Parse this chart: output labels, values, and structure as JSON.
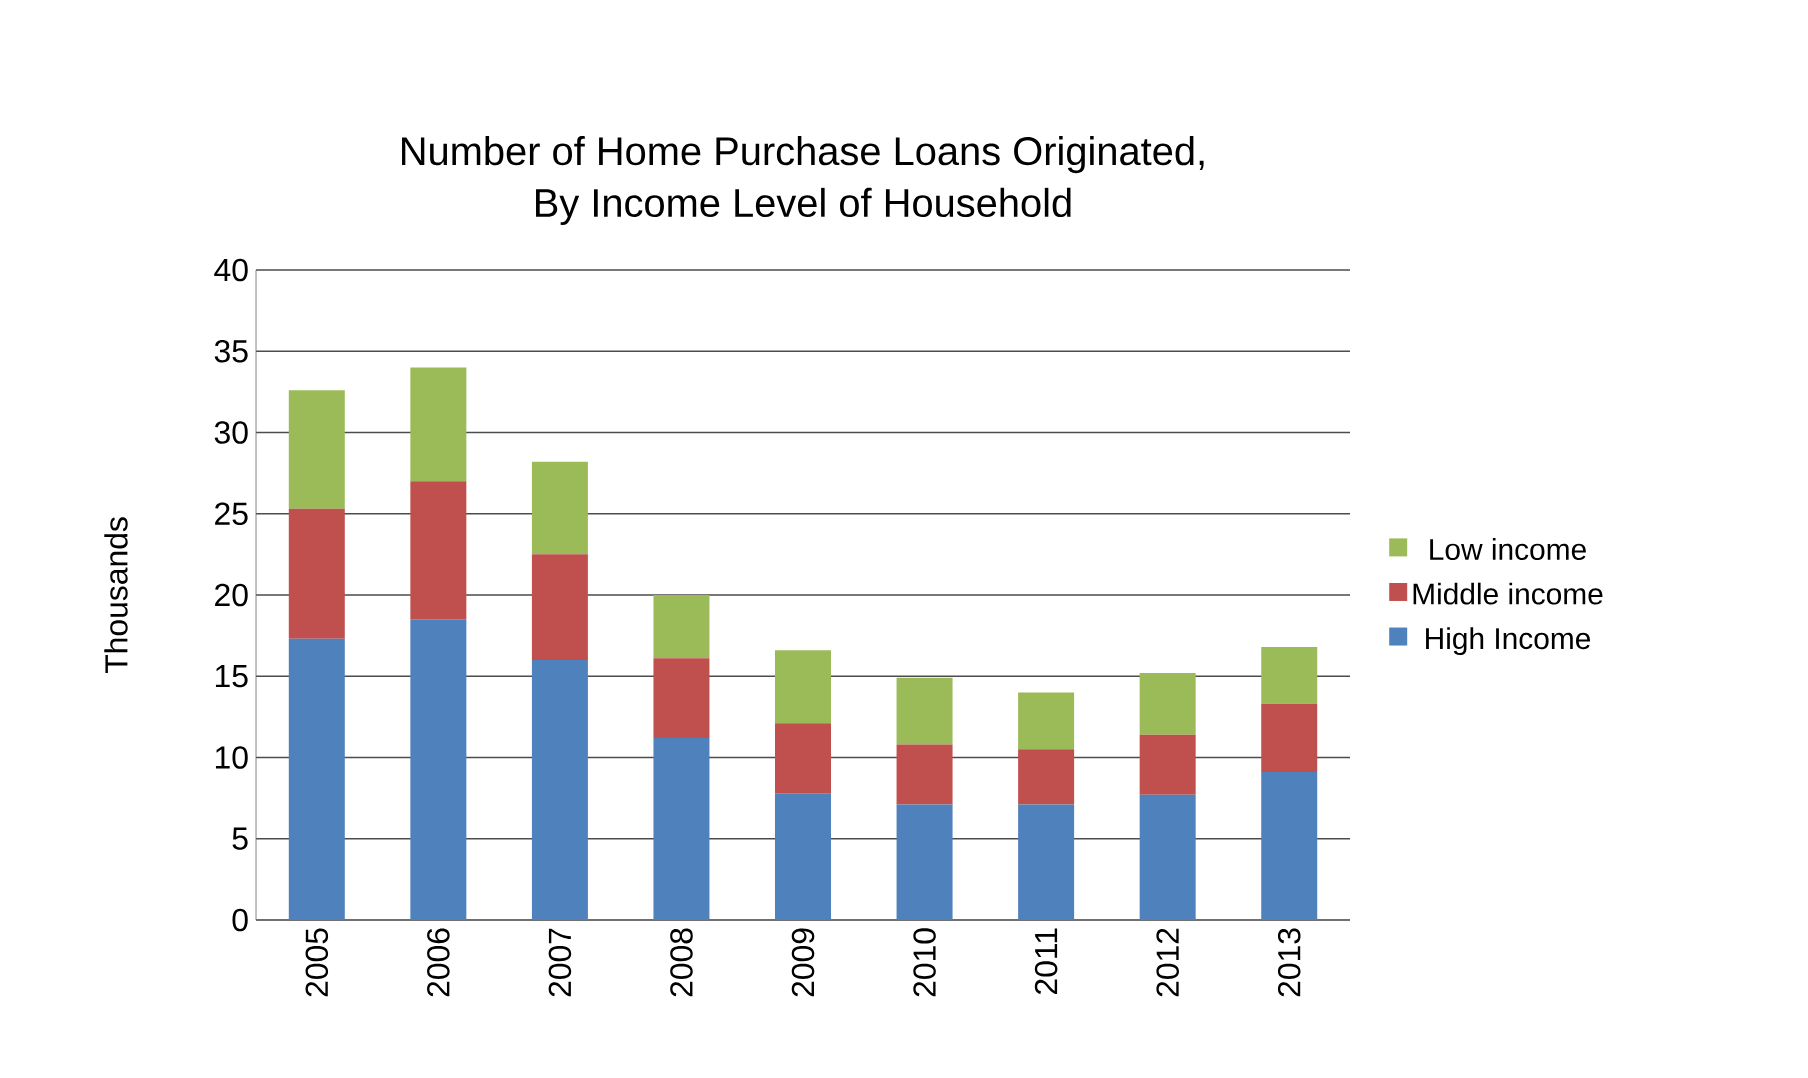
{
  "chart_data": {
    "type": "bar",
    "stacked": true,
    "title": "Number of Home Purchase Loans Originated,\nBy Income Level of Household",
    "ylabel": "Thousands",
    "categories": [
      "2005",
      "2006",
      "2007",
      "2008",
      "2009",
      "2010",
      "2011",
      "2012",
      "2013"
    ],
    "series": [
      {
        "name": "High Income",
        "color": "#4f81bd",
        "values": [
          17.3,
          18.5,
          16.0,
          11.2,
          7.8,
          7.1,
          7.1,
          7.7,
          9.1
        ]
      },
      {
        "name": "Middle income",
        "color": "#c0504d",
        "values": [
          8.0,
          8.5,
          6.5,
          4.9,
          4.3,
          3.7,
          3.4,
          3.7,
          4.2
        ]
      },
      {
        "name": "Low income",
        "color": "#9bbb59",
        "values": [
          7.3,
          7.0,
          5.7,
          3.9,
          4.5,
          4.1,
          3.5,
          3.8,
          3.5
        ]
      }
    ],
    "ylim": [
      0,
      40
    ],
    "yticks": [
      0,
      5,
      10,
      15,
      20,
      25,
      30,
      35,
      40
    ],
    "grid": "y",
    "legend": "right"
  }
}
